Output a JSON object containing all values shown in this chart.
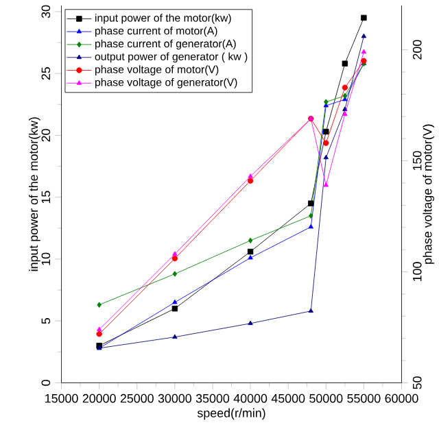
{
  "chart_data": {
    "type": "line",
    "xlabel": "speed(r/min)",
    "ylabel": "input power of the motor(kw)",
    "y2label": "phase voltage of motor(V)",
    "x": [
      20000,
      30000,
      40000,
      48000,
      50000,
      52500,
      55000
    ],
    "xlim": [
      15000,
      60000
    ],
    "xticks": [
      15000,
      20000,
      25000,
      30000,
      35000,
      40000,
      45000,
      50000,
      55000,
      60000
    ],
    "ylim": [
      0,
      30.5
    ],
    "yticks": [
      0,
      5,
      10,
      15,
      20,
      25,
      30
    ],
    "y2lim": [
      50,
      220
    ],
    "y2ticks": [
      50,
      100,
      150,
      200
    ],
    "legend": "top left",
    "grid": false,
    "line_style": "solid",
    "series": [
      {
        "name": "input power of the motor(kw)",
        "color": "#000000",
        "marker": "square",
        "values": [
          3.0,
          6.0,
          10.6,
          14.5,
          20.3,
          25.8,
          29.5
        ]
      },
      {
        "name": "phase current of motor(A)",
        "color": "#0000ff",
        "marker": "triangle",
        "values": [
          2.8,
          6.5,
          10.1,
          12.6,
          22.4,
          22.9,
          25.8
        ]
      },
      {
        "name": "phase current of generator(A)",
        "color": "#008000",
        "marker": "diamond",
        "values": [
          6.3,
          8.8,
          11.5,
          13.5,
          22.7,
          23.2,
          25.8
        ]
      },
      {
        "name": "output power of generator ( kw )",
        "color": "#000080",
        "marker": "triangle",
        "values": [
          2.8,
          3.7,
          4.8,
          5.8,
          18.2,
          22.1,
          28.0
        ]
      },
      {
        "name": "phase voltage of motor(V)",
        "color": "#ff0000",
        "marker": "circle",
        "axis": "y2",
        "values": [
          72,
          106,
          141,
          169,
          158,
          183,
          195
        ]
      },
      {
        "name": "phase voltage of generator(V)",
        "color": "#ff00ff",
        "marker": "triangle",
        "axis": "y2",
        "values": [
          74,
          108,
          143,
          169,
          139,
          171,
          199
        ]
      }
    ]
  }
}
